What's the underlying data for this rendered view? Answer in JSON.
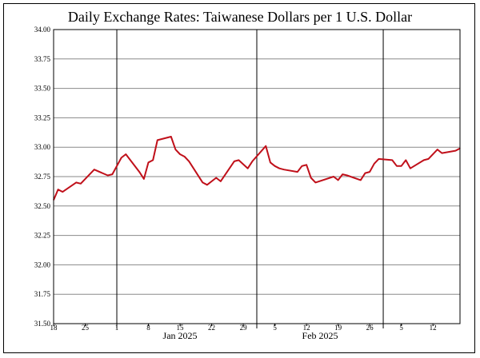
{
  "chart_data": {
    "type": "line",
    "title": "Daily Exchange Rates: Taiwanese Dollars per 1 U.S. Dollar",
    "xlabel": "",
    "ylabel": "",
    "ylim": [
      31.5,
      34.0
    ],
    "y_ticks": [
      "34.00",
      "33.75",
      "33.50",
      "33.25",
      "33.00",
      "32.75",
      "32.50",
      "32.25",
      "32.00",
      "31.75",
      "31.50"
    ],
    "x_tick_labels": [
      {
        "day": 0,
        "label": "18"
      },
      {
        "day": 7,
        "label": "25"
      },
      {
        "day": 14,
        "label": "1"
      },
      {
        "day": 21,
        "label": "8"
      },
      {
        "day": 28,
        "label": "15"
      },
      {
        "day": 35,
        "label": "22"
      },
      {
        "day": 42,
        "label": "29"
      },
      {
        "day": 49,
        "label": "5"
      },
      {
        "day": 56,
        "label": "12"
      },
      {
        "day": 63,
        "label": "19"
      },
      {
        "day": 70,
        "label": "26"
      },
      {
        "day": 77,
        "label": "5"
      },
      {
        "day": 84,
        "label": "12"
      }
    ],
    "month_labels": [
      {
        "day": 28,
        "label": "Jan 2025"
      },
      {
        "day": 59,
        "label": "Feb 2025"
      }
    ],
    "month_boundaries": [
      14,
      45,
      73
    ],
    "x_range": [
      0,
      90
    ],
    "grid": true,
    "series": [
      {
        "color": "#c0101a",
        "points": [
          [
            0,
            32.55
          ],
          [
            1,
            32.64
          ],
          [
            2,
            32.62
          ],
          [
            5,
            32.7
          ],
          [
            6,
            32.69
          ],
          [
            9,
            32.81
          ],
          [
            12,
            32.76
          ],
          [
            13,
            32.77
          ],
          [
            15,
            32.91
          ],
          [
            16,
            32.94
          ],
          [
            19,
            32.79
          ],
          [
            20,
            32.73
          ],
          [
            21,
            32.87
          ],
          [
            22,
            32.89
          ],
          [
            23,
            33.06
          ],
          [
            26,
            33.09
          ],
          [
            27,
            32.98
          ],
          [
            28,
            32.94
          ],
          [
            29,
            32.92
          ],
          [
            30,
            32.88
          ],
          [
            33,
            32.7
          ],
          [
            34,
            32.68
          ],
          [
            36,
            32.74
          ],
          [
            37,
            32.71
          ],
          [
            40,
            32.88
          ],
          [
            41,
            32.89
          ],
          [
            43,
            32.82
          ],
          [
            44,
            32.88
          ],
          [
            47,
            33.01
          ],
          [
            48,
            32.87
          ],
          [
            49,
            32.84
          ],
          [
            50,
            32.82
          ],
          [
            51,
            32.81
          ],
          [
            54,
            32.79
          ],
          [
            55,
            32.84
          ],
          [
            56,
            32.85
          ],
          [
            57,
            32.74
          ],
          [
            58,
            32.7
          ],
          [
            62,
            32.75
          ],
          [
            63,
            32.72
          ],
          [
            64,
            32.77
          ],
          [
            65,
            32.76
          ],
          [
            68,
            32.72
          ],
          [
            69,
            32.78
          ],
          [
            70,
            32.79
          ],
          [
            71,
            32.86
          ],
          [
            72,
            32.9
          ],
          [
            75,
            32.89
          ],
          [
            76,
            32.84
          ],
          [
            77,
            32.84
          ],
          [
            78,
            32.89
          ],
          [
            79,
            32.82
          ],
          [
            82,
            32.89
          ],
          [
            83,
            32.9
          ],
          [
            85,
            32.98
          ],
          [
            86,
            32.95
          ],
          [
            89,
            32.97
          ],
          [
            90,
            32.99
          ]
        ]
      }
    ]
  }
}
